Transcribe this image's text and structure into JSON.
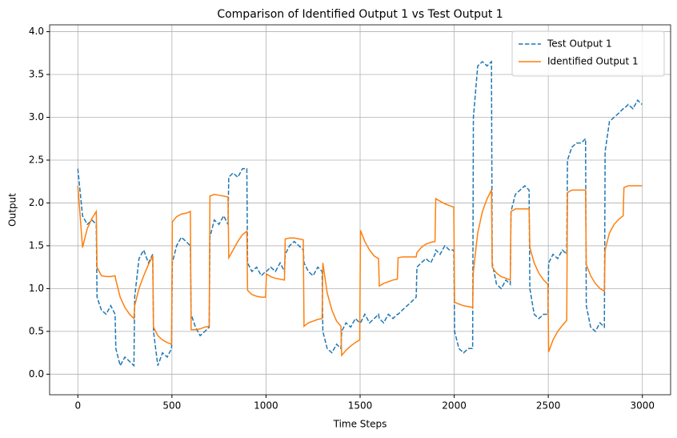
{
  "chart_data": {
    "type": "line",
    "title": "Comparison of Identified Output 1 vs Test Output 1",
    "xlabel": "Time Steps",
    "ylabel": "Output",
    "x": [
      0,
      25,
      50,
      75,
      98,
      102,
      125,
      150,
      175,
      198,
      202,
      225,
      250,
      275,
      298,
      302,
      325,
      350,
      375,
      398,
      402,
      425,
      450,
      475,
      498,
      502,
      525,
      550,
      575,
      598,
      602,
      625,
      650,
      675,
      698,
      702,
      725,
      750,
      775,
      798,
      802,
      825,
      850,
      875,
      898,
      902,
      925,
      950,
      975,
      998,
      1002,
      1025,
      1050,
      1075,
      1098,
      1102,
      1125,
      1150,
      1175,
      1198,
      1202,
      1225,
      1250,
      1275,
      1298,
      1302,
      1325,
      1350,
      1375,
      1398,
      1402,
      1425,
      1450,
      1475,
      1498,
      1502,
      1525,
      1550,
      1575,
      1598,
      1602,
      1625,
      1650,
      1675,
      1698,
      1702,
      1725,
      1750,
      1775,
      1798,
      1802,
      1825,
      1850,
      1875,
      1898,
      1902,
      1925,
      1950,
      1975,
      1998,
      2002,
      2025,
      2050,
      2075,
      2098,
      2102,
      2125,
      2150,
      2175,
      2198,
      2202,
      2225,
      2250,
      2275,
      2298,
      2302,
      2325,
      2350,
      2375,
      2398,
      2402,
      2425,
      2450,
      2475,
      2498,
      2502,
      2525,
      2550,
      2575,
      2598,
      2602,
      2625,
      2650,
      2675,
      2698,
      2702,
      2725,
      2750,
      2775,
      2798,
      2802,
      2825,
      2850,
      2875,
      2898,
      2902,
      2925,
      2950,
      2975,
      2998
    ],
    "series": [
      {
        "name": "Test Output 1",
        "color": "#1f77b4",
        "linestyle": "dashed",
        "values": [
          2.4,
          1.85,
          1.75,
          1.8,
          1.75,
          0.9,
          0.75,
          0.7,
          0.8,
          0.7,
          0.3,
          0.1,
          0.2,
          0.15,
          0.1,
          0.9,
          1.35,
          1.45,
          1.3,
          1.4,
          0.5,
          0.1,
          0.25,
          0.2,
          0.3,
          1.3,
          1.5,
          1.6,
          1.55,
          1.5,
          0.7,
          0.55,
          0.45,
          0.5,
          0.55,
          1.6,
          1.8,
          1.75,
          1.85,
          1.75,
          2.3,
          2.35,
          2.3,
          2.4,
          2.4,
          1.3,
          1.2,
          1.25,
          1.15,
          1.2,
          1.2,
          1.25,
          1.2,
          1.3,
          1.2,
          1.4,
          1.5,
          1.55,
          1.5,
          1.45,
          1.3,
          1.2,
          1.15,
          1.25,
          1.2,
          0.5,
          0.3,
          0.25,
          0.35,
          0.3,
          0.5,
          0.6,
          0.55,
          0.65,
          0.6,
          0.6,
          0.7,
          0.6,
          0.65,
          0.7,
          0.65,
          0.6,
          0.7,
          0.65,
          0.7,
          0.7,
          0.75,
          0.8,
          0.85,
          0.9,
          1.25,
          1.3,
          1.35,
          1.3,
          1.4,
          1.45,
          1.4,
          1.5,
          1.45,
          1.45,
          0.5,
          0.3,
          0.25,
          0.3,
          0.3,
          3.0,
          3.6,
          3.65,
          3.6,
          3.65,
          1.3,
          1.05,
          1.0,
          1.1,
          1.05,
          1.9,
          2.1,
          2.15,
          2.2,
          2.15,
          1.0,
          0.7,
          0.65,
          0.7,
          0.7,
          1.3,
          1.4,
          1.35,
          1.45,
          1.4,
          2.5,
          2.65,
          2.7,
          2.7,
          2.75,
          0.8,
          0.55,
          0.5,
          0.6,
          0.55,
          2.6,
          2.95,
          3.0,
          3.05,
          3.1,
          3.1,
          3.15,
          3.1,
          3.2,
          3.15
        ]
      },
      {
        "name": "Identified Output 1",
        "color": "#ff7f0e",
        "linestyle": "solid",
        "values": [
          2.2,
          1.48,
          1.7,
          1.82,
          1.9,
          1.25,
          1.15,
          1.14,
          1.14,
          1.15,
          1.1,
          0.9,
          0.78,
          0.7,
          0.65,
          0.8,
          1.0,
          1.15,
          1.28,
          1.38,
          0.55,
          0.45,
          0.4,
          0.37,
          0.35,
          1.78,
          1.84,
          1.87,
          1.88,
          1.9,
          0.52,
          0.52,
          0.53,
          0.55,
          0.56,
          2.08,
          2.1,
          2.09,
          2.08,
          2.07,
          1.36,
          1.45,
          1.55,
          1.63,
          1.67,
          0.98,
          0.93,
          0.91,
          0.9,
          0.9,
          1.17,
          1.14,
          1.12,
          1.11,
          1.1,
          1.58,
          1.59,
          1.59,
          1.58,
          1.57,
          0.56,
          0.6,
          0.62,
          0.64,
          0.65,
          1.3,
          0.95,
          0.75,
          0.62,
          0.56,
          0.22,
          0.28,
          0.33,
          0.37,
          0.4,
          1.68,
          1.55,
          1.45,
          1.38,
          1.35,
          1.03,
          1.06,
          1.08,
          1.1,
          1.11,
          1.36,
          1.37,
          1.37,
          1.37,
          1.37,
          1.42,
          1.48,
          1.52,
          1.54,
          1.55,
          2.05,
          2.02,
          1.99,
          1.97,
          1.95,
          0.84,
          0.82,
          0.8,
          0.79,
          0.78,
          1.2,
          1.65,
          1.9,
          2.05,
          2.15,
          1.25,
          1.18,
          1.14,
          1.12,
          1.1,
          1.9,
          1.93,
          1.93,
          1.93,
          1.93,
          1.48,
          1.3,
          1.18,
          1.1,
          1.05,
          0.26,
          0.4,
          0.5,
          0.57,
          0.63,
          2.12,
          2.15,
          2.15,
          2.15,
          2.15,
          1.28,
          1.15,
          1.06,
          1.0,
          0.97,
          1.45,
          1.65,
          1.75,
          1.81,
          1.85,
          2.18,
          2.2,
          2.2,
          2.2,
          2.2
        ]
      }
    ],
    "xlim": [
      -150,
      3150
    ],
    "ylim": [
      -0.24,
      4.08
    ],
    "xticks": [
      0,
      500,
      1000,
      1500,
      2000,
      2500,
      3000
    ],
    "yticks": [
      {
        "value": 0,
        "label": "0.0"
      },
      0.5,
      {
        "value": 1,
        "label": "1.0"
      },
      1.5,
      {
        "value": 2,
        "label": "2.0"
      },
      2.5,
      {
        "value": 3,
        "label": "3.0"
      },
      3.5,
      {
        "value": 4,
        "label": "4.0"
      }
    ],
    "grid": true,
    "legend": "upper right"
  }
}
